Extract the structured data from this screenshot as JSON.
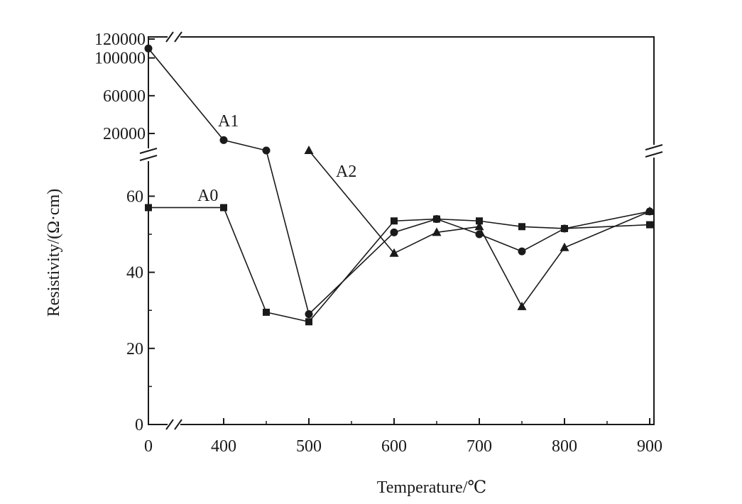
{
  "chart_data": {
    "type": "line",
    "xlabel": "Temperature/℃",
    "ylabel": "Resistivity/(Ω·cm)",
    "x_ticks": [
      0,
      400,
      500,
      600,
      700,
      800,
      900
    ],
    "y_ticks_lower": [
      0,
      20,
      40,
      60
    ],
    "y_ticks_upper": [
      20000,
      60000,
      100000,
      120000
    ],
    "xlim": [
      0,
      900
    ],
    "ylim_lower": [
      0,
      70
    ],
    "ylim_upper": [
      0,
      120000
    ],
    "axis_breaks": [
      "x between 0 and 400",
      "y between 70 and 0 (upper scale)"
    ],
    "grid": false,
    "legend": "none",
    "series": [
      {
        "name": "A0",
        "marker": "square",
        "x": [
          0,
          400,
          450,
          500,
          600,
          650,
          700,
          750,
          800,
          900
        ],
        "y": [
          57,
          57,
          29.5,
          27,
          53.5,
          54,
          53.5,
          52,
          51.5,
          52.5
        ]
      },
      {
        "name": "A1",
        "marker": "circle",
        "x": [
          0,
          400,
          450,
          500,
          600,
          650,
          700,
          750,
          800,
          900
        ],
        "y": [
          110000,
          13000,
          2000,
          29,
          50.5,
          54,
          50,
          45.5,
          51.5,
          56
        ]
      },
      {
        "name": "A2",
        "marker": "triangle",
        "x": [
          500,
          600,
          650,
          700,
          750,
          800,
          900
        ],
        "y": [
          2000,
          45,
          50.5,
          52,
          31,
          46.5,
          56
        ]
      }
    ]
  }
}
